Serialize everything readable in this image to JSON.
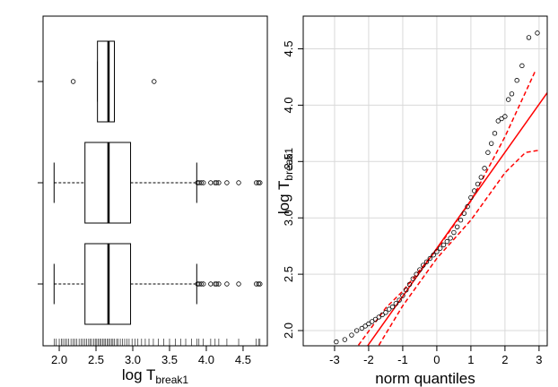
{
  "chart_data": [
    {
      "type": "boxplot",
      "xlabel": {
        "main": "log T",
        "sub": "break1"
      },
      "categories": [
        null,
        null,
        null
      ],
      "boxes": [
        {
          "min": 1.93,
          "q1": 2.35,
          "median": 2.67,
          "q3": 2.97,
          "max": 3.87,
          "outliers": [
            3.88,
            3.9,
            3.93,
            3.96,
            4.06,
            4.12,
            4.14,
            4.17,
            4.28,
            4.44,
            4.68,
            4.71,
            4.73
          ]
        },
        {
          "min": 1.93,
          "q1": 2.35,
          "median": 2.67,
          "q3": 2.97,
          "max": 3.87,
          "outliers": [
            3.88,
            3.9,
            3.93,
            3.96,
            4.06,
            4.12,
            4.14,
            4.17,
            4.28,
            4.44,
            4.68,
            4.71,
            4.73
          ]
        },
        {
          "min": 2.52,
          "q1": 2.52,
          "median": 2.67,
          "q3": 2.75,
          "max": 2.75,
          "outliers": [
            2.19,
            3.29
          ]
        }
      ],
      "rug": [
        1.93,
        1.96,
        2.0,
        2.03,
        2.05,
        2.08,
        2.1,
        2.13,
        2.16,
        2.19,
        2.21,
        2.24,
        2.27,
        2.3,
        2.32,
        2.35,
        2.37,
        2.4,
        2.42,
        2.44,
        2.47,
        2.49,
        2.51,
        2.53,
        2.55,
        2.57,
        2.59,
        2.61,
        2.63,
        2.65,
        2.67,
        2.69,
        2.71,
        2.73,
        2.75,
        2.78,
        2.8,
        2.83,
        2.86,
        2.89,
        2.92,
        2.95,
        2.99,
        3.03,
        3.07,
        3.12,
        3.17,
        3.22,
        3.28,
        3.35,
        3.42,
        3.5,
        3.58,
        3.65,
        3.72,
        3.8,
        3.87,
        3.9,
        3.96,
        4.06,
        4.12,
        4.17,
        4.28,
        4.44,
        4.68,
        4.71,
        4.73
      ],
      "xlim": [
        1.78,
        4.83
      ],
      "xticks": [
        {
          "value": 2,
          "label": "2.0"
        },
        2.5,
        {
          "value": 3,
          "label": "3.0"
        },
        3.5,
        {
          "value": 4,
          "label": "4.0"
        },
        4.5
      ]
    },
    {
      "type": "qq",
      "xlabel": "norm quantiles",
      "ylabel": {
        "main": "log T",
        "sub": "break1"
      },
      "x": [
        -2.95,
        -2.7,
        -2.5,
        -2.35,
        -2.2,
        -2.1,
        -2.0,
        -1.9,
        -1.8,
        -1.7,
        -1.6,
        -1.5,
        -1.4,
        -1.3,
        -1.2,
        -1.1,
        -1.0,
        -0.9,
        -0.8,
        -0.7,
        -0.6,
        -0.5,
        -0.4,
        -0.3,
        -0.2,
        -0.1,
        0,
        0.1,
        0.2,
        0.3,
        0.4,
        0.5,
        0.6,
        0.7,
        0.8,
        0.9,
        1.0,
        1.1,
        1.2,
        1.3,
        1.4,
        1.5,
        1.6,
        1.7,
        1.8,
        1.9,
        2.0,
        2.1,
        2.2,
        2.35,
        2.5,
        2.7,
        2.95
      ],
      "values": [
        1.9,
        1.92,
        1.96,
        2.0,
        2.02,
        2.04,
        2.06,
        2.08,
        2.1,
        2.12,
        2.14,
        2.16,
        2.19,
        2.21,
        2.24,
        2.27,
        2.31,
        2.36,
        2.41,
        2.46,
        2.5,
        2.54,
        2.58,
        2.61,
        2.64,
        2.67,
        2.7,
        2.73,
        2.76,
        2.79,
        2.82,
        2.87,
        2.92,
        2.98,
        3.04,
        3.1,
        3.18,
        3.24,
        3.3,
        3.36,
        3.44,
        3.58,
        3.66,
        3.75,
        3.86,
        3.88,
        3.9,
        4.05,
        4.1,
        4.22,
        4.35,
        4.6,
        4.64
      ],
      "ref_line": {
        "x": [
          -2.03,
          3.24
        ],
        "y": [
          1.865,
          4.11
        ]
      },
      "envelope_upper": {
        "x": [
          -2.3,
          -1.5,
          -1.0,
          0,
          1.0,
          2.0,
          2.9
        ],
        "y": [
          1.87,
          2.2,
          2.35,
          2.72,
          3.15,
          3.72,
          4.31
        ]
      },
      "envelope_lower": {
        "x": [
          -1.7,
          -1.0,
          0,
          1.0,
          2.0,
          2.6,
          3.0
        ],
        "y": [
          1.87,
          2.22,
          2.64,
          2.98,
          3.4,
          3.58,
          3.6
        ]
      },
      "color": "#ff0000",
      "grid": true,
      "xlim": [
        -3.92,
        3.24
      ],
      "ylim": [
        1.865,
        4.79
      ],
      "xticks": [
        -3,
        -2,
        -1,
        0,
        1,
        2,
        3
      ],
      "yticks": [
        {
          "value": 2,
          "label": "2.0"
        },
        2.5,
        {
          "value": 3,
          "label": "3.0"
        },
        3.5,
        {
          "value": 4,
          "label": "4.0"
        },
        4.5
      ]
    }
  ]
}
